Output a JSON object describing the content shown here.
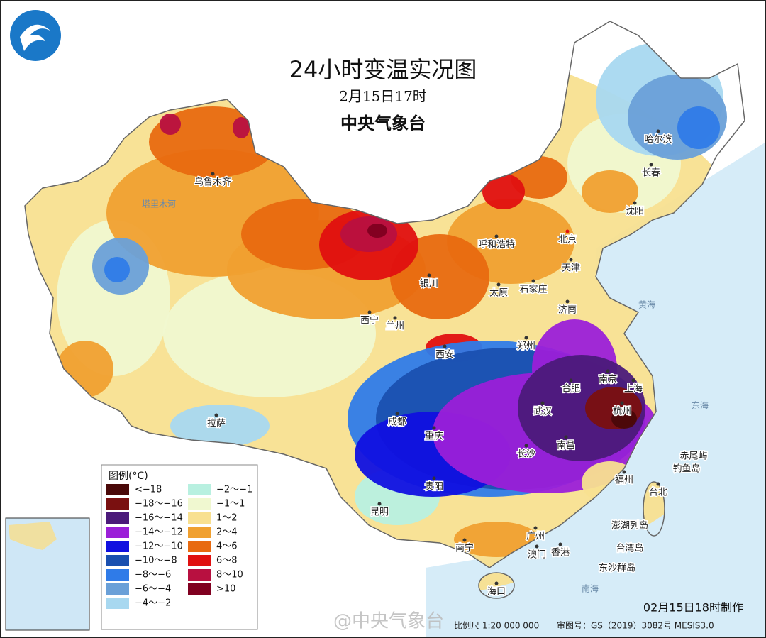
{
  "header": {
    "title": "24小时变温实况图",
    "date": "2月15日17时",
    "agency": "中央气象台"
  },
  "legend": {
    "title": "图例(°C)",
    "items": [
      {
        "label": "<−18",
        "color": "#4a0808"
      },
      {
        "label": "−18～−16",
        "color": "#7a1010"
      },
      {
        "label": "−16～−14",
        "color": "#4b1a7a"
      },
      {
        "label": "−14～−12",
        "color": "#9b1fd8"
      },
      {
        "label": "−12～−10",
        "color": "#1010e0"
      },
      {
        "label": "−10～−8",
        "color": "#1a50b0"
      },
      {
        "label": "−8～−6",
        "color": "#2f7be8"
      },
      {
        "label": "−6～−4",
        "color": "#6aa0d8"
      },
      {
        "label": "−4～−2",
        "color": "#a8d8f0"
      },
      {
        "label": "−2～−1",
        "color": "#b8f0e0"
      },
      {
        "label": "−1～1",
        "color": "#f0f8d0"
      },
      {
        "label": "1～2",
        "color": "#f8e090"
      },
      {
        "label": "2～4",
        "color": "#f0a030"
      },
      {
        "label": "4～6",
        "color": "#e86a10"
      },
      {
        "label": "6～8",
        "color": "#e01010"
      },
      {
        "label": "8～10",
        "color": "#b81040"
      },
      {
        "label": ">10",
        "color": "#800020"
      }
    ]
  },
  "cities": [
    "乌鲁木齐",
    "北京",
    "天津",
    "石家庄",
    "太原",
    "呼和浩特",
    "银川",
    "兰州",
    "西宁",
    "西安",
    "郑州",
    "济南",
    "南京",
    "合肥",
    "上海",
    "杭州",
    "武汉",
    "南昌",
    "长沙",
    "重庆",
    "成都",
    "贵阳",
    "昆明",
    "拉萨",
    "南宁",
    "广州",
    "澳门",
    "香港",
    "海口",
    "福州",
    "台北",
    "哈尔滨",
    "长春",
    "沈阳",
    "赤尾屿",
    "钓鱼岛",
    "澎湖列岛",
    "台湾岛",
    "东沙群岛"
  ],
  "geo_labels": [
    "塔里木河",
    "黄海",
    "东海",
    "南海"
  ],
  "footer": {
    "made": "02月15日18时制作",
    "scale": "比例尺 1:20 000 000",
    "approval": "审图号：GS（2019）3082号 MESIS3.0",
    "watermark": "@中央气象台"
  }
}
